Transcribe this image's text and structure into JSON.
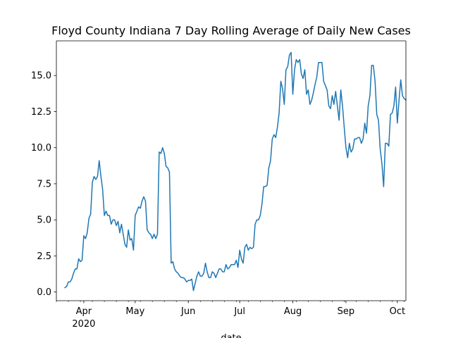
{
  "chart_data": {
    "type": "line",
    "title": "Floyd County Indiana 7 Day Rolling Average of Daily New Cases",
    "xlabel": "date",
    "ylabel": "",
    "x_start": "2020-03-21",
    "x_end": "2020-10-06",
    "xlim": [
      "2020-03-16",
      "2020-10-06"
    ],
    "ylim": [
      -0.6,
      17.4
    ],
    "grid": false,
    "line_color": "#1f77b4",
    "y_ticks": [
      0.0,
      2.5,
      5.0,
      7.5,
      10.0,
      12.5,
      15.0
    ],
    "y_tick_labels": [
      "0.0",
      "2.5",
      "5.0",
      "7.5",
      "10.0",
      "12.5",
      "15.0"
    ],
    "x_ticks": [
      {
        "date": "2020-04-01",
        "label": "Apr",
        "sublabel": "2020"
      },
      {
        "date": "2020-05-01",
        "label": "May",
        "sublabel": ""
      },
      {
        "date": "2020-06-01",
        "label": "Jun",
        "sublabel": ""
      },
      {
        "date": "2020-07-01",
        "label": "Jul",
        "sublabel": ""
      },
      {
        "date": "2020-08-01",
        "label": "Aug",
        "sublabel": ""
      },
      {
        "date": "2020-09-01",
        "label": "Sep",
        "sublabel": ""
      },
      {
        "date": "2020-10-01",
        "label": "Oct",
        "sublabel": ""
      }
    ],
    "series": [
      {
        "name": "",
        "values": [
          0.3,
          0.4,
          0.7,
          0.7,
          0.9,
          1.3,
          1.6,
          1.6,
          2.3,
          2.1,
          2.2,
          3.9,
          3.7,
          4.1,
          5.1,
          5.4,
          7.6,
          8.0,
          7.8,
          8.0,
          9.1,
          8.0,
          7.1,
          5.3,
          5.6,
          5.3,
          5.3,
          4.7,
          5.0,
          5.0,
          4.6,
          4.9,
          4.1,
          4.7,
          4.0,
          3.3,
          3.1,
          4.3,
          3.6,
          3.7,
          2.9,
          5.3,
          5.6,
          5.9,
          5.8,
          6.3,
          6.6,
          6.3,
          4.3,
          4.1,
          4.0,
          3.7,
          4.0,
          3.7,
          4.0,
          9.7,
          9.6,
          10.0,
          9.6,
          8.7,
          8.6,
          8.3,
          2.0,
          2.1,
          1.6,
          1.4,
          1.3,
          1.1,
          1.0,
          1.0,
          0.9,
          0.7,
          0.8,
          0.8,
          0.9,
          0.1,
          0.6,
          1.1,
          1.4,
          1.1,
          1.1,
          1.3,
          2.0,
          1.4,
          1.0,
          1.0,
          1.4,
          1.3,
          1.0,
          1.3,
          1.6,
          1.6,
          1.4,
          1.4,
          1.9,
          1.6,
          1.7,
          1.9,
          1.9,
          1.9,
          2.2,
          1.7,
          2.9,
          2.3,
          2.0,
          3.1,
          3.3,
          2.9,
          3.1,
          3.0,
          3.1,
          4.7,
          5.0,
          5.0,
          5.3,
          6.1,
          7.3,
          7.3,
          7.4,
          8.6,
          9.1,
          10.6,
          10.9,
          10.7,
          11.4,
          12.4,
          14.6,
          14.1,
          13.0,
          15.4,
          15.6,
          16.4,
          16.6,
          13.7,
          15.4,
          16.1,
          15.9,
          16.1,
          15.1,
          14.8,
          15.4,
          13.7,
          14.0,
          13.0,
          13.3,
          13.8,
          14.4,
          14.9,
          15.9,
          15.9,
          15.9,
          14.6,
          14.3,
          14.0,
          12.9,
          12.7,
          13.6,
          13.0,
          13.9,
          12.9,
          11.9,
          14.0,
          12.9,
          11.4,
          10.0,
          9.3,
          10.3,
          9.7,
          9.9,
          10.6,
          10.6,
          10.7,
          10.7,
          10.3,
          10.6,
          11.7,
          11.0,
          12.9,
          13.6,
          15.7,
          15.7,
          14.6,
          12.3,
          11.9,
          9.9,
          8.9,
          7.3,
          10.3,
          10.3,
          10.1,
          12.3,
          12.4,
          12.9,
          14.2,
          11.7,
          13.3,
          14.7,
          13.6,
          13.4,
          13.3
        ]
      }
    ]
  }
}
